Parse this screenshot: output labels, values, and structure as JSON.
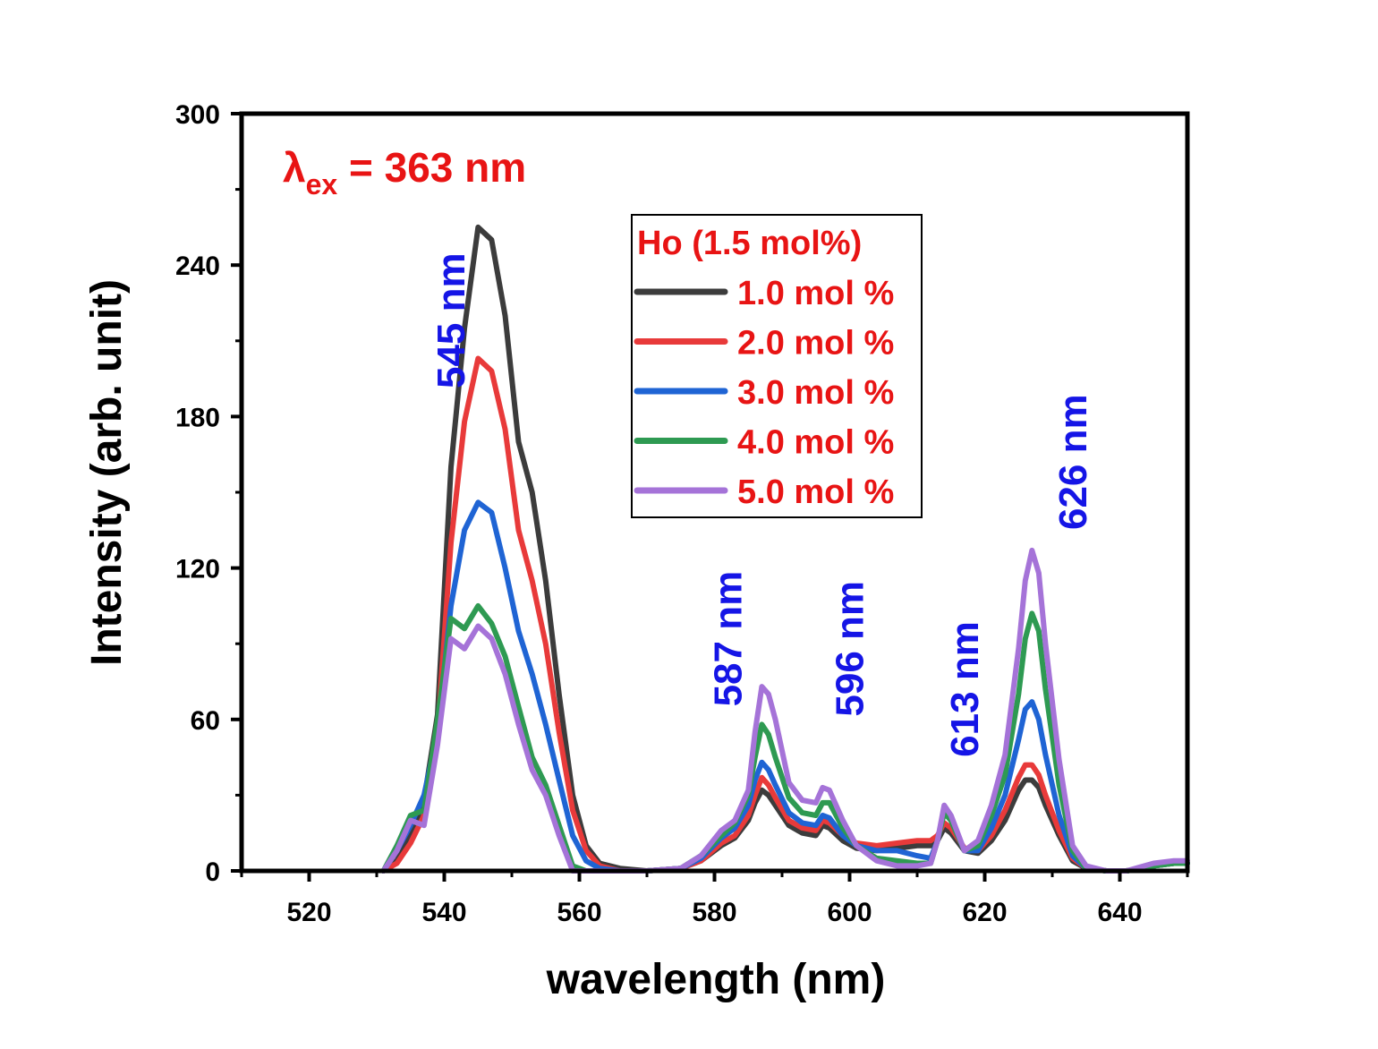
{
  "chart_data": {
    "type": "line",
    "xlabel": "wavelength (nm)",
    "ylabel": "Intensity (arb. unit)",
    "xlim": [
      510,
      650
    ],
    "ylim": [
      0,
      300
    ],
    "x_ticks": [
      "520",
      "540",
      "560",
      "580",
      "600",
      "620",
      "640"
    ],
    "y_ticks": [
      "0",
      "60",
      "120",
      "180",
      "240",
      "300"
    ],
    "excitation": {
      "symbol": "λ",
      "subscript": "ex",
      "rest": " = 363 nm"
    },
    "legend": {
      "title": "Ho (1.5 mol%)",
      "position": "top-center"
    },
    "annotations": [
      {
        "text": "545 nm",
        "x": 543,
        "y": 218
      },
      {
        "text": "587 nm",
        "x": 584,
        "y": 92
      },
      {
        "text": "596 nm",
        "x": 602,
        "y": 88
      },
      {
        "text": "613 nm",
        "x": 619,
        "y": 72
      },
      {
        "text": "626 nm",
        "x": 635,
        "y": 162
      }
    ],
    "x": [
      531,
      533,
      535,
      537,
      539,
      541,
      543,
      545,
      547,
      549,
      551,
      553,
      555,
      557,
      559,
      561,
      563,
      566,
      570,
      575,
      578,
      581,
      583,
      585,
      586,
      587,
      588,
      589,
      591,
      593,
      595,
      596,
      597,
      599,
      601,
      604,
      607,
      610,
      612,
      613,
      614,
      615,
      617,
      619,
      621,
      623,
      625,
      626,
      627,
      628,
      629,
      631,
      633,
      635,
      638,
      641,
      645,
      648,
      650
    ],
    "series": [
      {
        "name": "1.0 mol %",
        "color": "#3c3c3c",
        "values": [
          0,
          4,
          14,
          28,
          62,
          160,
          215,
          255,
          250,
          220,
          170,
          150,
          115,
          70,
          30,
          10,
          3,
          1,
          0,
          1,
          4,
          10,
          13,
          20,
          27,
          32,
          30,
          26,
          18,
          15,
          14,
          18,
          17,
          12,
          9,
          8,
          9,
          10,
          10,
          12,
          17,
          15,
          8,
          7,
          12,
          20,
          32,
          36,
          36,
          33,
          26,
          14,
          4,
          1,
          0,
          0,
          2,
          3,
          3
        ]
      },
      {
        "name": "2.0 mol %",
        "color": "#e83a3a",
        "values": [
          0,
          3,
          11,
          22,
          55,
          130,
          178,
          203,
          198,
          175,
          135,
          115,
          90,
          55,
          24,
          8,
          2,
          0,
          0,
          1,
          4,
          11,
          14,
          22,
          30,
          37,
          34,
          29,
          20,
          17,
          16,
          20,
          19,
          14,
          11,
          10,
          11,
          12,
          12,
          14,
          19,
          17,
          9,
          8,
          14,
          24,
          37,
          42,
          42,
          38,
          30,
          16,
          5,
          1,
          0,
          0,
          2,
          3,
          3
        ]
      },
      {
        "name": "3.0 mol %",
        "color": "#1f64d4",
        "values": [
          0,
          8,
          18,
          30,
          55,
          105,
          135,
          146,
          142,
          120,
          95,
          78,
          58,
          36,
          14,
          4,
          1,
          0,
          0,
          1,
          5,
          13,
          17,
          26,
          36,
          43,
          40,
          34,
          23,
          19,
          18,
          22,
          21,
          14,
          10,
          8,
          8,
          6,
          5,
          12,
          24,
          20,
          8,
          8,
          17,
          30,
          52,
          64,
          67,
          60,
          46,
          22,
          6,
          1,
          0,
          0,
          2,
          3,
          3
        ]
      },
      {
        "name": "4.0 mol %",
        "color": "#2e9a52",
        "values": [
          0,
          10,
          22,
          24,
          60,
          100,
          96,
          105,
          98,
          85,
          65,
          45,
          34,
          18,
          2,
          0,
          0,
          0,
          0,
          1,
          6,
          14,
          19,
          30,
          45,
          58,
          54,
          45,
          29,
          23,
          22,
          27,
          27,
          17,
          10,
          5,
          4,
          3,
          3,
          12,
          23,
          20,
          8,
          10,
          22,
          38,
          70,
          92,
          102,
          95,
          72,
          34,
          8,
          1,
          0,
          0,
          2,
          3,
          3
        ]
      },
      {
        "name": "5.0 mol %",
        "color": "#a573d8",
        "values": [
          0,
          8,
          20,
          18,
          50,
          92,
          88,
          97,
          92,
          78,
          58,
          40,
          30,
          14,
          0,
          0,
          0,
          0,
          0,
          1,
          6,
          16,
          20,
          32,
          55,
          73,
          70,
          60,
          35,
          28,
          27,
          33,
          32,
          20,
          10,
          4,
          2,
          2,
          3,
          12,
          26,
          22,
          8,
          12,
          26,
          46,
          88,
          115,
          127,
          118,
          90,
          44,
          10,
          2,
          0,
          0,
          3,
          4,
          4
        ]
      }
    ]
  }
}
